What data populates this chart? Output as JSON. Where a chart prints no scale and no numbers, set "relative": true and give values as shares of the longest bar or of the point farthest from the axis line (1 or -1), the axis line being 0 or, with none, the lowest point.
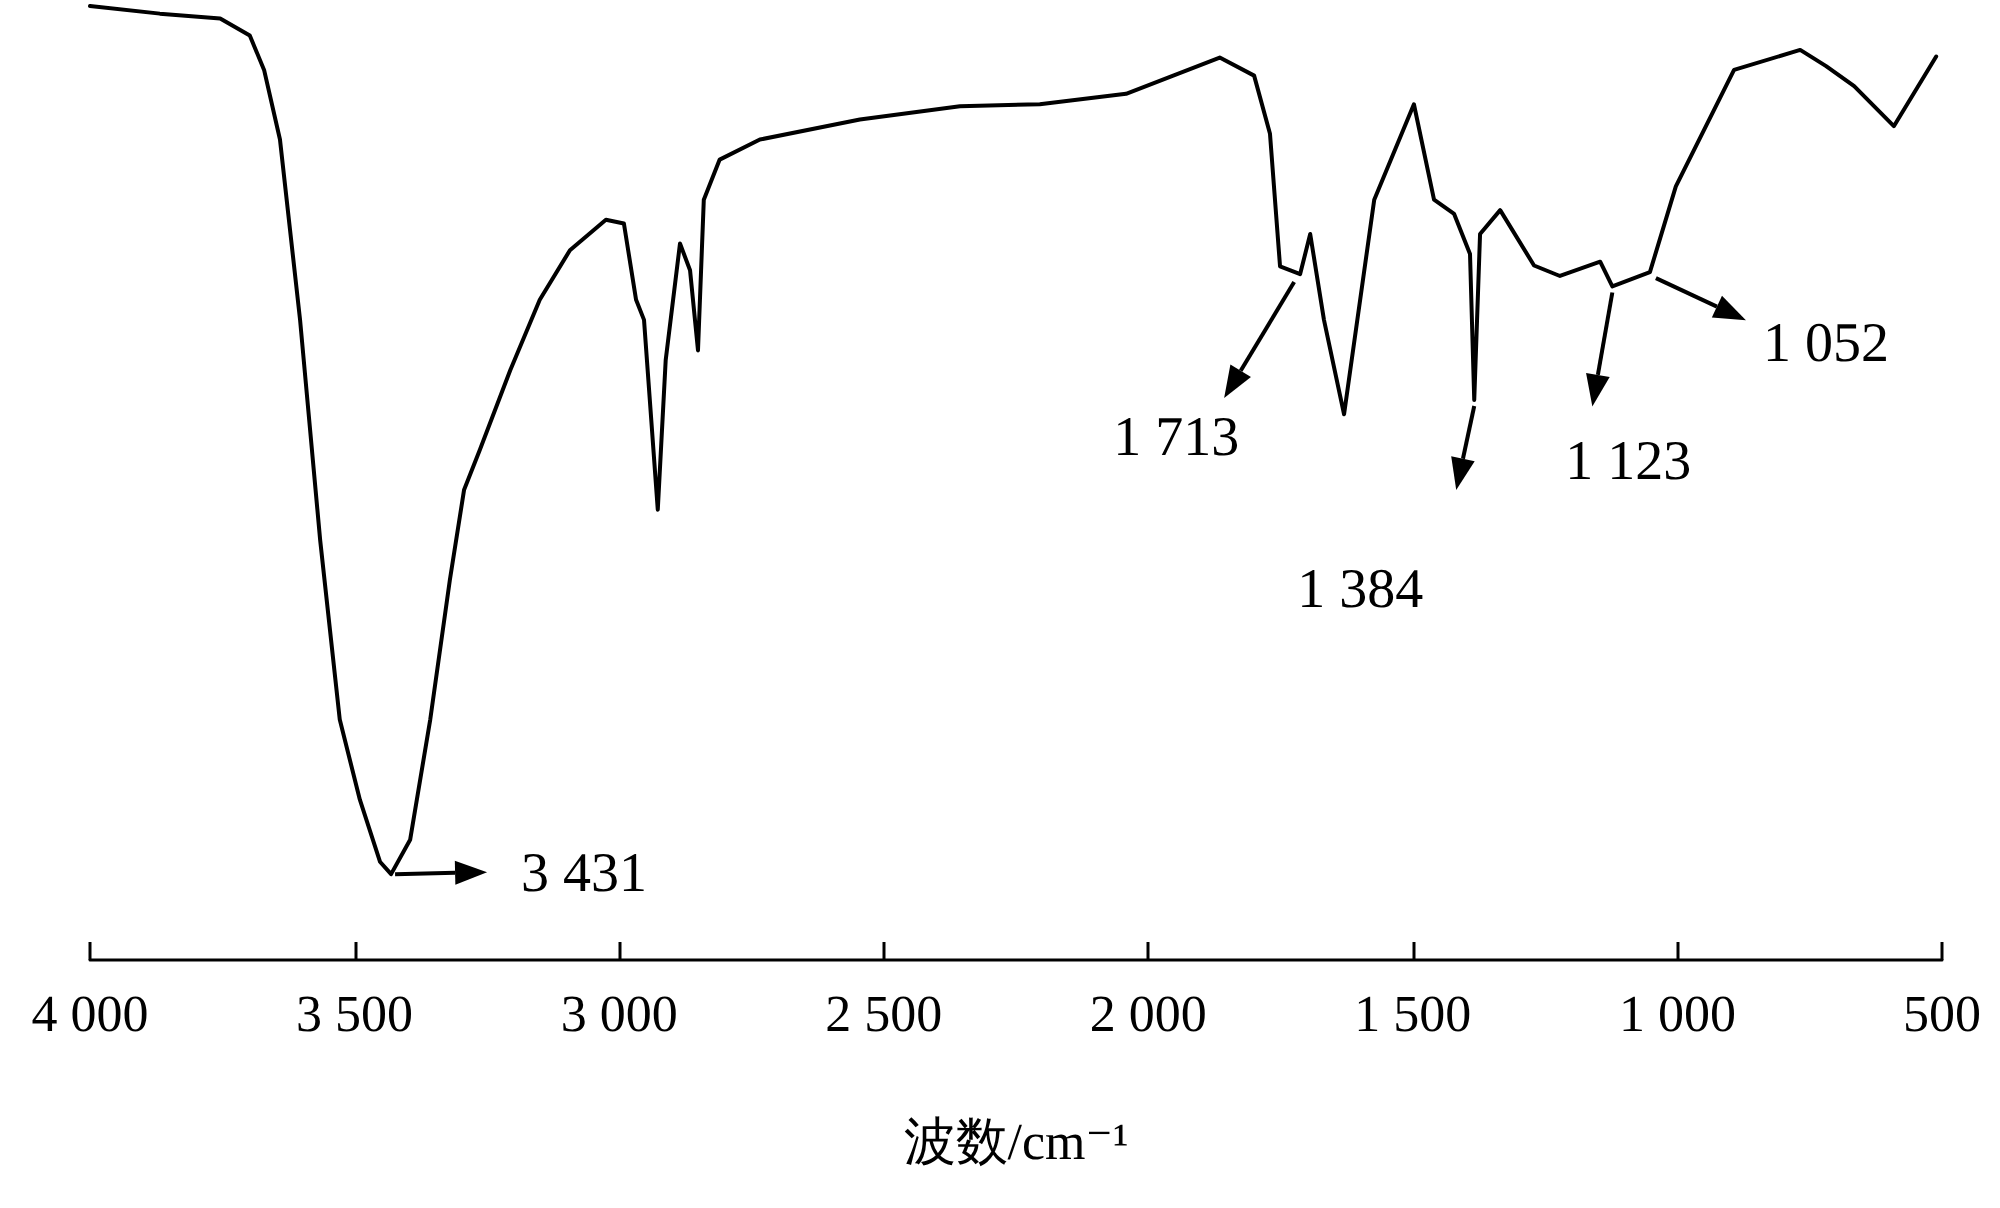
{
  "chart_data": {
    "type": "line",
    "relative": true,
    "xlabel": "波数/cm⁻¹",
    "xlim": [
      4000,
      500
    ],
    "xticks": [
      {
        "value": 4000,
        "label": "4 000"
      },
      {
        "value": 3500,
        "label": "3 500"
      },
      {
        "value": 3000,
        "label": "3 000"
      },
      {
        "value": 2500,
        "label": "2 500"
      },
      {
        "value": 2000,
        "label": "2 000"
      },
      {
        "value": 1500,
        "label": "1 500"
      },
      {
        "value": 1000,
        "label": "1 000"
      },
      500
    ],
    "grid": false,
    "marker": "none",
    "line_style": "solid",
    "series": [
      {
        "color": "#000000",
        "x": [
          4000,
          3868,
          3754,
          3698,
          3671,
          3641,
          3603,
          3565,
          3528,
          3490,
          3452,
          3431,
          3395,
          3357,
          3320,
          3293,
          3263,
          3206,
          3150,
          3093,
          3025,
          2991,
          2968,
          2953,
          2927,
          2912,
          2885,
          2866,
          2851,
          2840,
          2810,
          2734,
          2545,
          2356,
          2205,
          2042,
          1865,
          1800,
          1770,
          1751,
          1713,
          1694,
          1668,
          1630,
          1573,
          1498,
          1460,
          1422,
          1392,
          1384,
          1373,
          1335,
          1271,
          1222,
          1146,
          1123,
          1052,
          1003,
          893,
          768,
          719,
          666,
          591,
          511
        ],
        "values": [
          1.0,
          0.992,
          0.987,
          0.969,
          0.933,
          0.86,
          0.671,
          0.44,
          0.252,
          0.168,
          0.103,
          0.09,
          0.126,
          0.252,
          0.398,
          0.493,
          0.535,
          0.618,
          0.692,
          0.744,
          0.776,
          0.772,
          0.692,
          0.671,
          0.472,
          0.629,
          0.751,
          0.723,
          0.639,
          0.797,
          0.839,
          0.86,
          0.881,
          0.895,
          0.897,
          0.908,
          0.946,
          0.927,
          0.866,
          0.727,
          0.719,
          0.761,
          0.671,
          0.572,
          0.797,
          0.897,
          0.797,
          0.782,
          0.74,
          0.587,
          0.761,
          0.786,
          0.728,
          0.717,
          0.732,
          0.706,
          0.721,
          0.811,
          0.933,
          0.954,
          0.937,
          0.916,
          0.874,
          0.947
        ]
      }
    ],
    "annotations": [
      {
        "text": "3 431",
        "x": 3431,
        "y": 0.09
      },
      {
        "text": "1 713",
        "x": 1713,
        "y": 0.719
      },
      {
        "text": "1 384",
        "x": 1384,
        "y": 0.587
      },
      {
        "text": "1 123",
        "x": 1123,
        "y": 0.706
      },
      {
        "text": "1 052",
        "x": 1052,
        "y": 0.721
      }
    ]
  }
}
